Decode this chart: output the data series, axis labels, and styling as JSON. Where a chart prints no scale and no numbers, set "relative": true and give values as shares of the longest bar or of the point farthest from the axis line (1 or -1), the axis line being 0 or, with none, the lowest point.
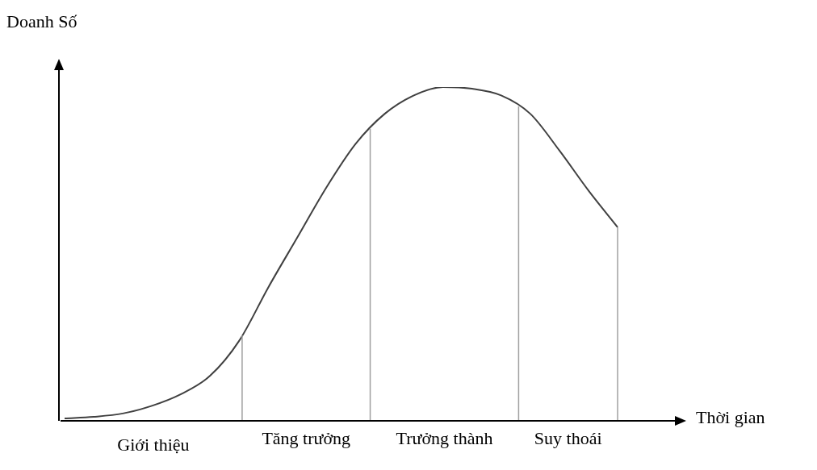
{
  "chart_data": {
    "type": "line",
    "relative": true,
    "xlabel": "Thời gian",
    "ylabel": "Doanh Số",
    "categories": [
      null,
      null,
      null,
      null,
      null,
      null,
      null,
      null,
      null,
      null,
      null,
      null,
      null,
      null,
      null,
      null,
      null,
      null,
      null,
      null
    ],
    "series": [
      {
        "color": "#404040",
        "values": [
          0.007,
          0.012,
          0.022,
          0.045,
          0.08,
          0.135,
          0.24,
          0.4,
          0.55,
          0.7,
          0.83,
          0.92,
          0.975,
          1,
          0.995,
          0.975,
          0.92,
          0.81,
          0.69,
          0.58
        ]
      }
    ],
    "marker": "none",
    "line_style": "solid",
    "legend": false,
    "tick_labels": false,
    "annotations": [
      "Giới thiệu",
      "Tăng trưởng",
      "Trưởng thành",
      "Suy thoái"
    ]
  }
}
